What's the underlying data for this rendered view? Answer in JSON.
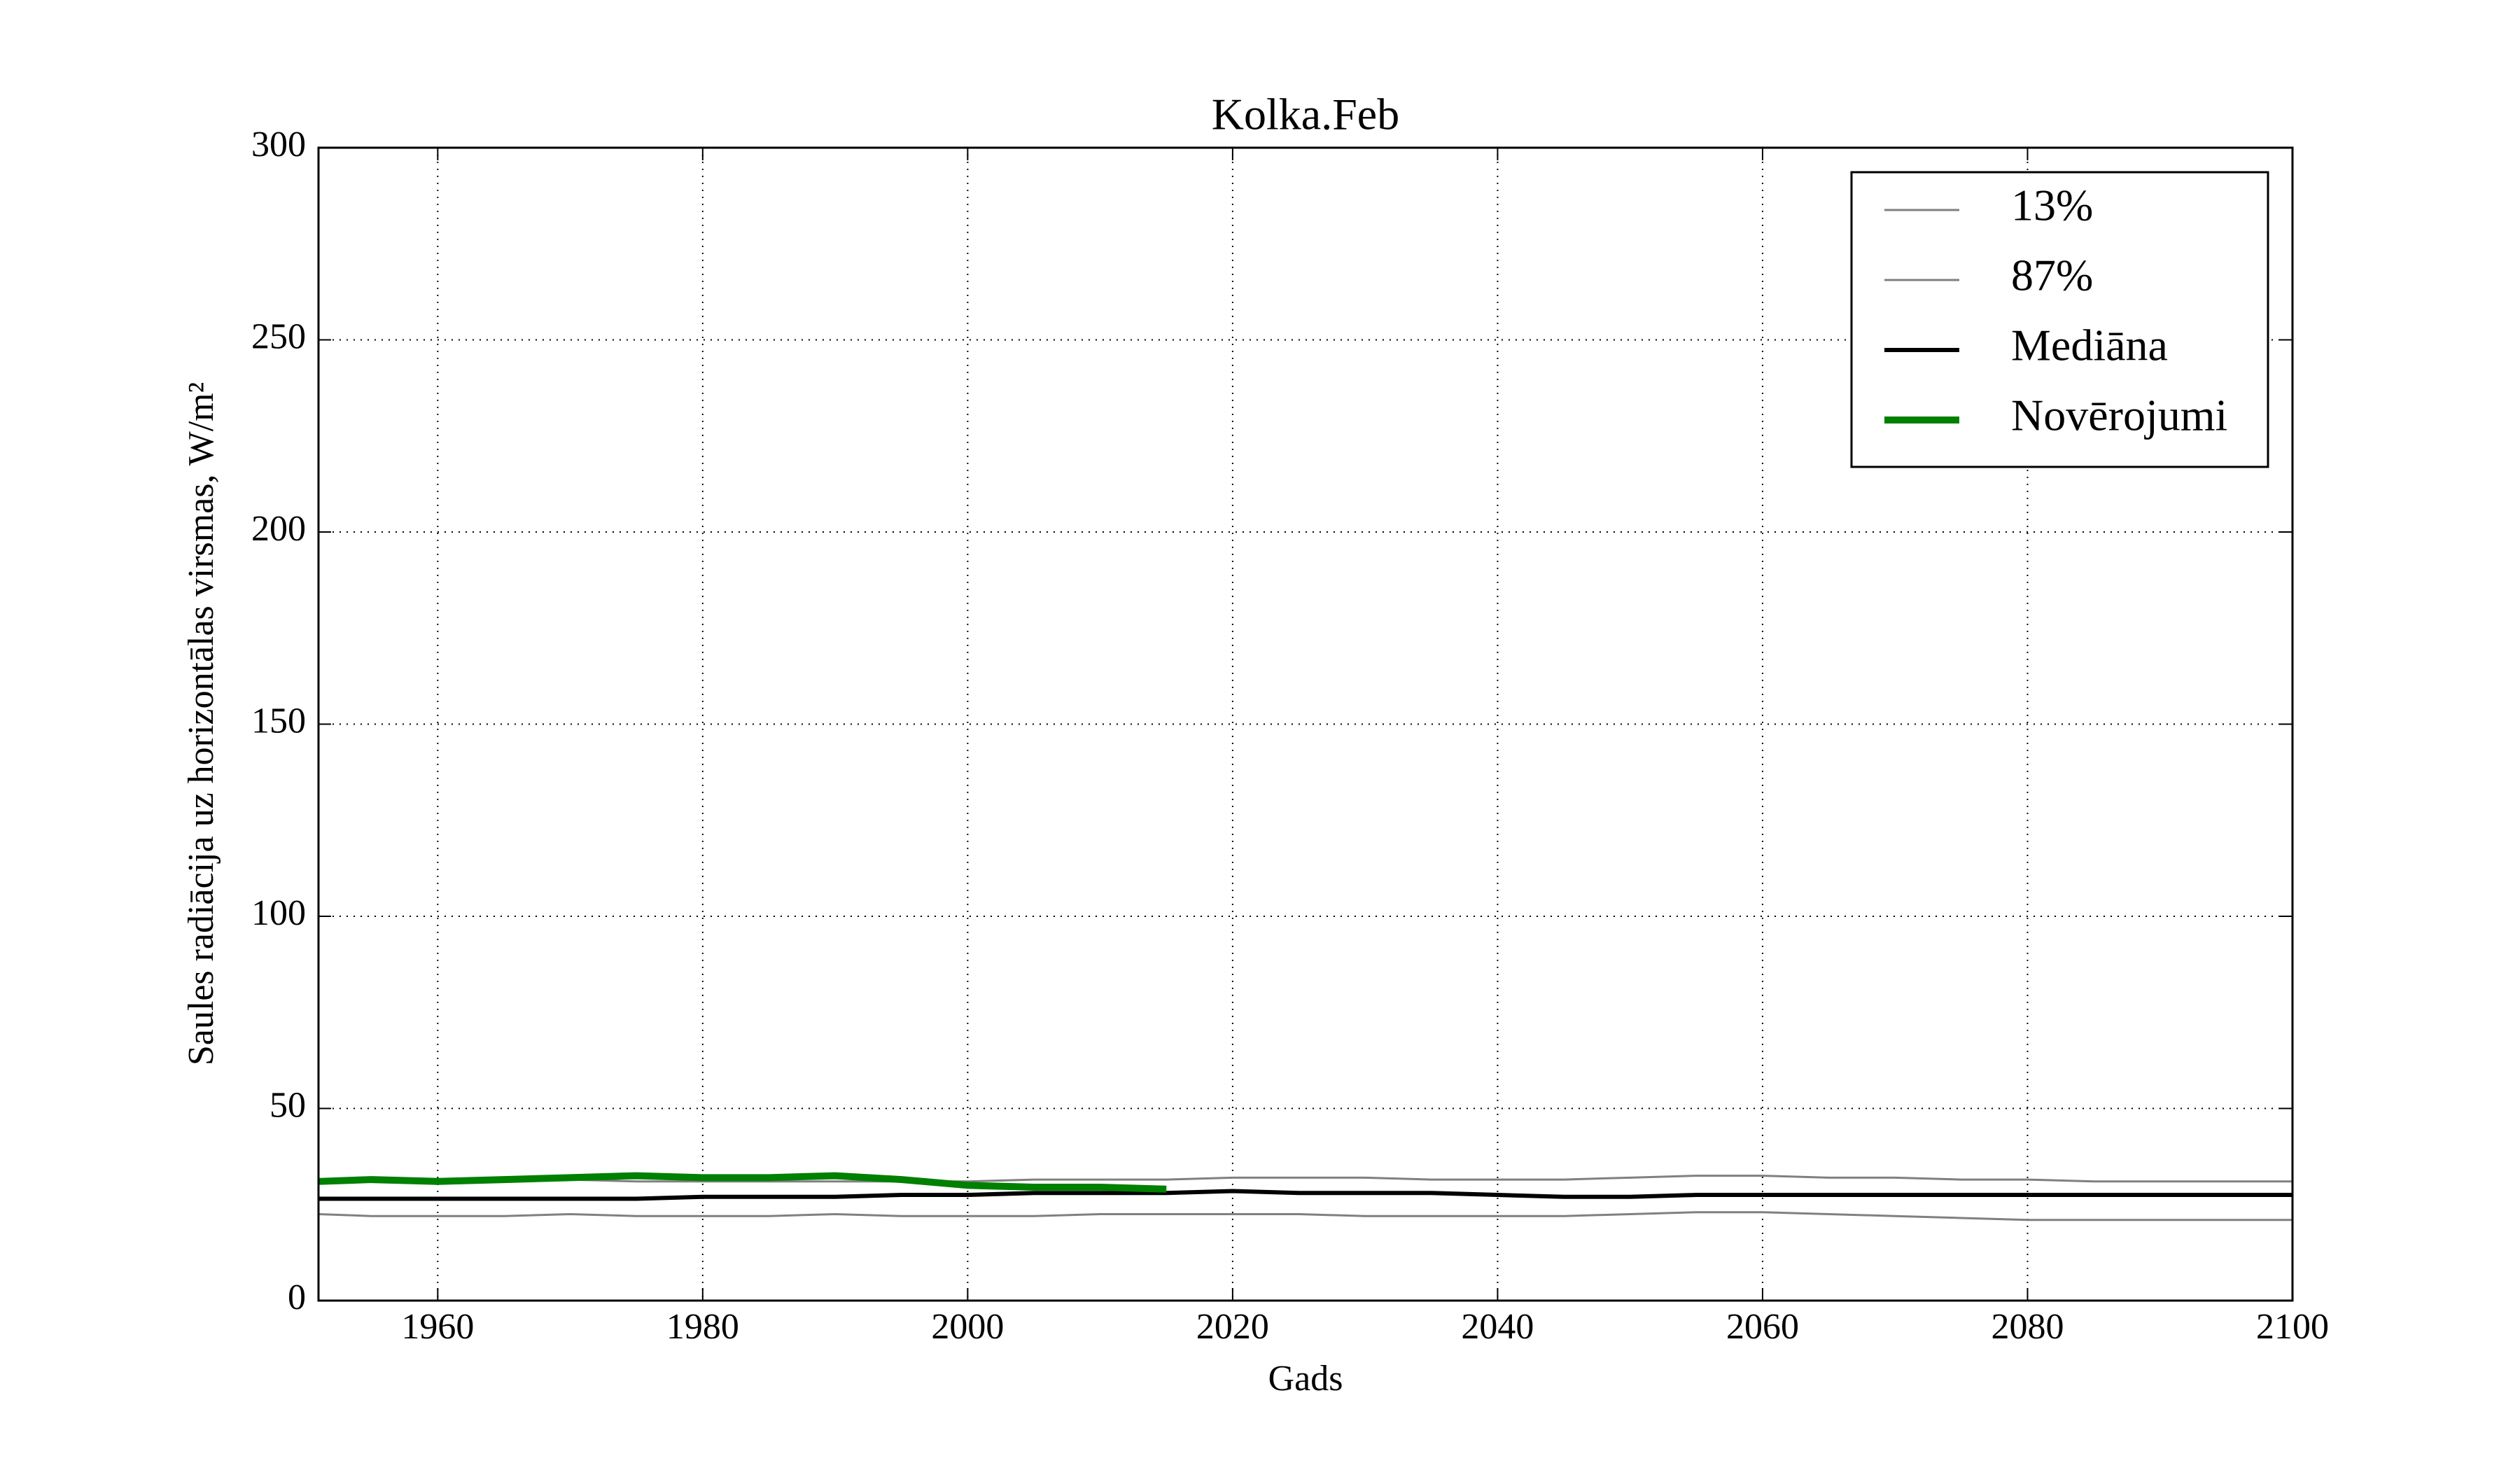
{
  "chart_data": {
    "type": "line",
    "title": "Kolka.Feb",
    "x_label": "Gads",
    "y_label": "Saules radiācija uz horizontālas virsmas, W/m²",
    "x": [
      1951,
      1955,
      1960,
      1965,
      1970,
      1975,
      1980,
      1985,
      1990,
      1995,
      2000,
      2005,
      2010,
      2015,
      2020,
      2025,
      2030,
      2035,
      2040,
      2045,
      2050,
      2055,
      2060,
      2065,
      2070,
      2075,
      2080,
      2085,
      2090,
      2095,
      2100
    ],
    "series": [
      {
        "name": "13%",
        "color": "#808080",
        "width": 3,
        "values": [
          22.5,
          22,
          22,
          22,
          22.5,
          22,
          22,
          22,
          22.5,
          22,
          22,
          22,
          22.5,
          22.5,
          22.5,
          22.5,
          22,
          22,
          22,
          22,
          22.5,
          23,
          23,
          22.5,
          22,
          21.5,
          21,
          21,
          21,
          21,
          21
        ]
      },
      {
        "name": "87%",
        "color": "#808080",
        "width": 3,
        "values": [
          31,
          31,
          31,
          31.5,
          31.5,
          31,
          31,
          31,
          31,
          31,
          31,
          31.5,
          31.5,
          31.5,
          32,
          32,
          32,
          31.5,
          31.5,
          31.5,
          32,
          32.5,
          32.5,
          32,
          32,
          31.5,
          31.5,
          31,
          31,
          31,
          31
        ]
      },
      {
        "name": "Mediāna",
        "color": "#000000",
        "width": 6,
        "values": [
          26.5,
          26.5,
          26.5,
          26.5,
          26.5,
          26.5,
          27,
          27,
          27,
          27.5,
          27.5,
          28,
          28,
          28,
          28.5,
          28,
          28,
          28,
          27.5,
          27,
          27,
          27.5,
          27.5,
          27.5,
          27.5,
          27.5,
          27.5,
          27.5,
          27.5,
          27.5,
          27.5
        ]
      },
      {
        "name": "Novērojumi",
        "color": "#008000",
        "width": 10,
        "values": [
          31,
          31.5,
          31,
          31.5,
          32,
          32.5,
          32,
          32,
          32.5,
          31.5,
          30,
          29.5,
          29.5,
          29,
          null,
          null,
          null,
          null,
          null,
          null,
          null,
          null,
          null,
          null,
          null,
          null,
          null,
          null,
          null,
          null,
          null
        ]
      }
    ],
    "xlim": [
      1951,
      2100
    ],
    "xticks": [
      1960,
      1980,
      2000,
      2020,
      2040,
      2060,
      2080,
      2100
    ],
    "ylim": [
      0,
      300
    ],
    "yticks": [
      0,
      50,
      100,
      150,
      200,
      250,
      300
    ],
    "grid": true,
    "legend": "upper right"
  }
}
